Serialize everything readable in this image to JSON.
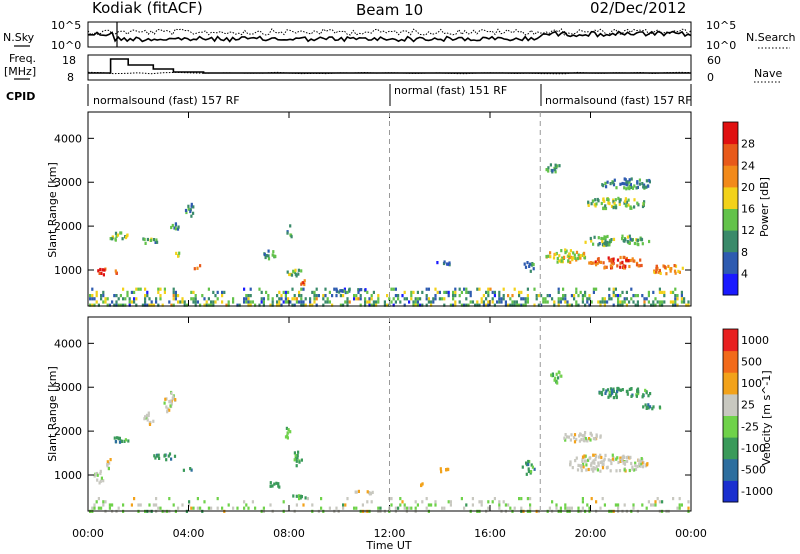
{
  "header": {
    "station": "Kodiak (fitACF)",
    "beam": "Beam 10",
    "date": "02/Dec/2012"
  },
  "top_panels": {
    "nsky_label": "N.Sky",
    "nsky_ticks": [
      "10^5",
      "10^0"
    ],
    "nsearch_label": "N.Search",
    "nsearch_ticks": [
      "10^5",
      "10^0"
    ],
    "freq_label": "Freq.",
    "freq_unit": "[MHz]",
    "freq_ticks": [
      "18",
      "8"
    ],
    "nave_label": "Nave",
    "nave_ticks": [
      "60",
      "0"
    ],
    "cpid_label": "CPID",
    "cpid_segments": [
      {
        "label": "normalsound (fast) 157 RF",
        "start_hour": 0,
        "end_hour": 12
      },
      {
        "label": "normal (fast) 151 RF",
        "start_hour": 12,
        "end_hour": 18
      },
      {
        "label": "normalsound (fast) 157 RF",
        "start_hour": 18,
        "end_hour": 24
      }
    ],
    "freq_steps": [
      {
        "start_hour": 0,
        "end_hour": 0.9,
        "mhz": 10.5
      },
      {
        "start_hour": 0.9,
        "end_hour": 1.6,
        "mhz": 17.5
      },
      {
        "start_hour": 1.6,
        "end_hour": 2.6,
        "mhz": 14.5
      },
      {
        "start_hour": 2.6,
        "end_hour": 3.4,
        "mhz": 12.5
      },
      {
        "start_hour": 3.4,
        "end_hour": 4.6,
        "mhz": 11
      },
      {
        "start_hour": 4.6,
        "end_hour": 24,
        "mhz": 10.5
      }
    ]
  },
  "chart_data": [
    {
      "type": "heatmap",
      "title": "",
      "xlabel": "Time UT",
      "ylabel": "Slant Range [km]",
      "x_range_hours": [
        0,
        24
      ],
      "ylim": [
        180,
        4600
      ],
      "x_ticks": [
        "00:00",
        "04:00",
        "08:00",
        "12:00",
        "16:00",
        "20:00",
        "00:00"
      ],
      "y_ticks": [
        1000,
        2000,
        3000,
        4000
      ],
      "colorbar": {
        "label": "Power [dB]",
        "ticks": [
          4,
          8,
          12,
          16,
          20,
          24,
          28
        ],
        "range": [
          0,
          30
        ],
        "colors": [
          "#1a1aff",
          "#2e5bb0",
          "#3a8a6a",
          "#63c24a",
          "#f2d21a",
          "#f28a1a",
          "#e85a1a",
          "#e01010"
        ]
      },
      "blobs": [
        {
          "t": 0.5,
          "r": 1000,
          "dt": 0.45,
          "dr": 170,
          "v": 27
        },
        {
          "t": 1.1,
          "r": 1000,
          "dt": 0.3,
          "dr": 130,
          "v": 24
        },
        {
          "t": 1.2,
          "r": 1800,
          "dt": 0.8,
          "dr": 170,
          "v": 14
        },
        {
          "t": 2.4,
          "r": 1700,
          "dt": 0.7,
          "dr": 140,
          "v": 12
        },
        {
          "t": 3.4,
          "r": 2050,
          "dt": 0.35,
          "dr": 260,
          "v": 9
        },
        {
          "t": 4.0,
          "r": 2400,
          "dt": 0.35,
          "dr": 300,
          "v": 8
        },
        {
          "t": 3.5,
          "r": 1400,
          "dt": 0.3,
          "dr": 110,
          "v": 16
        },
        {
          "t": 4.3,
          "r": 1100,
          "dt": 0.35,
          "dr": 90,
          "v": 22
        },
        {
          "t": 7.2,
          "r": 1400,
          "dt": 0.45,
          "dr": 260,
          "v": 10
        },
        {
          "t": 8.2,
          "r": 950,
          "dt": 0.7,
          "dr": 170,
          "v": 14
        },
        {
          "t": 8.5,
          "r": 750,
          "dt": 0.35,
          "dr": 110,
          "v": 26
        },
        {
          "t": 8.0,
          "r": 1900,
          "dt": 0.25,
          "dr": 300,
          "v": 10
        },
        {
          "t": 10.5,
          "r": 560,
          "dt": 1.4,
          "dr": 90,
          "v": 7
        },
        {
          "t": 14.0,
          "r": 1180,
          "dt": 0.8,
          "dr": 80,
          "v": 6
        },
        {
          "t": 17.5,
          "r": 1100,
          "dt": 0.5,
          "dr": 220,
          "v": 8
        },
        {
          "t": 19.0,
          "r": 1350,
          "dt": 1.6,
          "dr": 300,
          "v": 17
        },
        {
          "t": 21.0,
          "r": 1200,
          "dt": 2.2,
          "dr": 250,
          "v": 24
        },
        {
          "t": 23.0,
          "r": 1050,
          "dt": 1.3,
          "dr": 200,
          "v": 21
        },
        {
          "t": 21.0,
          "r": 1700,
          "dt": 2.6,
          "dr": 220,
          "v": 12
        },
        {
          "t": 21.0,
          "r": 2550,
          "dt": 2.4,
          "dr": 240,
          "v": 13
        },
        {
          "t": 21.5,
          "r": 3000,
          "dt": 2.2,
          "dr": 230,
          "v": 9
        },
        {
          "t": 18.5,
          "r": 3350,
          "dt": 0.6,
          "dr": 200,
          "v": 9
        }
      ],
      "ground_scatter_band": {
        "r_from": 200,
        "r_to": 600,
        "density": 0.55
      }
    },
    {
      "type": "heatmap",
      "title": "",
      "xlabel": "Time UT",
      "ylabel": "Slant Range [km]",
      "x_range_hours": [
        0,
        24
      ],
      "ylim": [
        180,
        4600
      ],
      "x_ticks": [
        "00:00",
        "04:00",
        "08:00",
        "12:00",
        "16:00",
        "20:00",
        "00:00"
      ],
      "y_ticks": [
        1000,
        2000,
        3000,
        4000
      ],
      "colorbar": {
        "label": "Velocity [m s^-1]",
        "ticks": [
          "1000",
          "500",
          "100",
          "25",
          "-25",
          "-100",
          "-500",
          "-1000"
        ],
        "colors": [
          "#1a2fcf",
          "#2d6e9e",
          "#3a9a5a",
          "#6fd24a",
          "#c8c8c0",
          "#f2a21a",
          "#f26a1a",
          "#e82020"
        ]
      },
      "blobs": [
        {
          "t": 0.4,
          "r": 1000,
          "dt": 0.4,
          "dr": 300,
          "c": 4
        },
        {
          "t": 0.8,
          "r": 1300,
          "dt": 0.3,
          "dr": 250,
          "c": 4
        },
        {
          "t": 1.2,
          "r": 1800,
          "dt": 0.8,
          "dr": 170,
          "c": 2
        },
        {
          "t": 3.0,
          "r": 1450,
          "dt": 0.9,
          "dr": 140,
          "c": 2
        },
        {
          "t": 4.0,
          "r": 1150,
          "dt": 0.5,
          "dr": 100,
          "c": 2
        },
        {
          "t": 3.2,
          "r": 2700,
          "dt": 0.5,
          "dr": 450,
          "c": 4
        },
        {
          "t": 2.4,
          "r": 2300,
          "dt": 0.4,
          "dr": 300,
          "c": 4
        },
        {
          "t": 7.4,
          "r": 800,
          "dt": 0.4,
          "dr": 200,
          "c": 2
        },
        {
          "t": 8.6,
          "r": 550,
          "dt": 1.1,
          "dr": 90,
          "c": 2
        },
        {
          "t": 8.3,
          "r": 1400,
          "dt": 0.35,
          "dr": 350,
          "c": 2
        },
        {
          "t": 7.9,
          "r": 2000,
          "dt": 0.25,
          "dr": 250,
          "c": 3
        },
        {
          "t": 11.0,
          "r": 640,
          "dt": 1.3,
          "dr": 70,
          "c": 4
        },
        {
          "t": 14.0,
          "r": 1150,
          "dt": 0.8,
          "dr": 90,
          "c": 5
        },
        {
          "t": 13.3,
          "r": 800,
          "dt": 0.3,
          "dr": 80,
          "c": 5
        },
        {
          "t": 17.5,
          "r": 1200,
          "dt": 0.5,
          "dr": 300,
          "c": 2
        },
        {
          "t": 20.6,
          "r": 1300,
          "dt": 3.3,
          "dr": 380,
          "c": 4
        },
        {
          "t": 19.6,
          "r": 1900,
          "dt": 1.6,
          "dr": 220,
          "c": 4
        },
        {
          "t": 21.3,
          "r": 2900,
          "dt": 2.2,
          "dr": 230,
          "c": 2
        },
        {
          "t": 22.3,
          "r": 2600,
          "dt": 1.2,
          "dr": 120,
          "c": 2
        },
        {
          "t": 18.6,
          "r": 3250,
          "dt": 0.6,
          "dr": 280,
          "c": 3
        }
      ],
      "ground_scatter_band": {
        "r_from": 200,
        "r_to": 500,
        "density": 0.3
      }
    }
  ]
}
